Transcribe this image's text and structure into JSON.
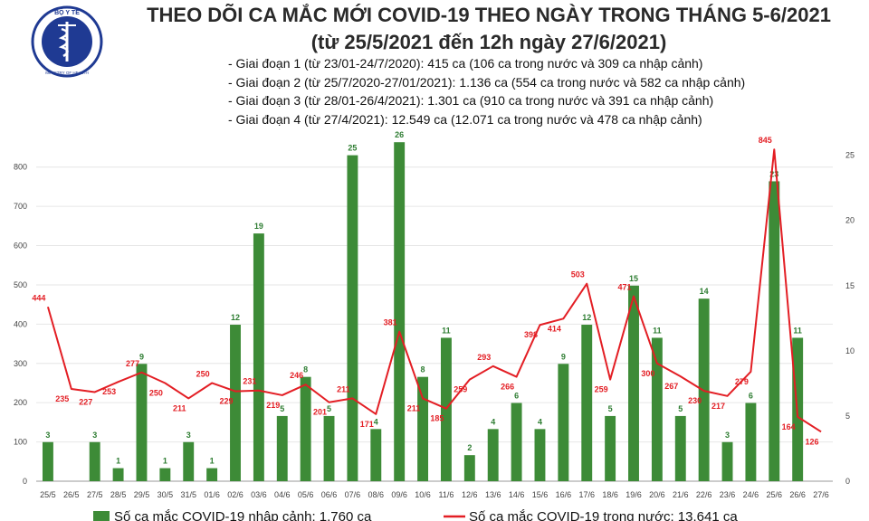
{
  "header": {
    "title_line1": "THEO DÕI CA MẮC MỚI COVID-19 THEO NGÀY TRONG THÁNG 5-6/2021",
    "title_line2": "(từ 25/5/2021 đến 12h ngày 27/6/2021)",
    "notes": [
      "- Giai đoạn 1 (từ 23/01-24/7/2020): 415 ca (106 ca trong nước và 309 ca nhập cảnh)",
      "- Giai đoạn 2 (từ 25/7/2020-27/01/2021): 1.136 ca (554 ca trong nước và 582 ca nhập cảnh)",
      "- Giai đoạn 3 (từ 28/01-26/4/2021): 1.301 ca (910 ca trong nước và 391 ca nhập cảnh)",
      "- Giai đoạn 4 (từ 27/4/2021): 12.549 ca (12.071 ca trong nước và 478 ca nhập cảnh)"
    ]
  },
  "logo": {
    "text": "BỘ Y TẾ",
    "subtext": "MINISTRY OF HEALTH",
    "color": "#1f3a93"
  },
  "colors": {
    "bar": "#3d8b37",
    "line": "#e31e24",
    "bar_label": "#2e7d32",
    "line_label": "#e31e24"
  },
  "chart_data": {
    "type": "bar+line",
    "categories": [
      "25/5",
      "26/5",
      "27/5",
      "28/5",
      "29/5",
      "30/5",
      "31/5",
      "01/6",
      "02/6",
      "03/6",
      "04/6",
      "05/6",
      "06/6",
      "07/6",
      "08/6",
      "09/6",
      "10/6",
      "11/6",
      "12/6",
      "13/6",
      "14/6",
      "15/6",
      "16/6",
      "17/6",
      "18/6",
      "19/6",
      "20/6",
      "21/6",
      "22/6",
      "23/6",
      "24/6",
      "25/6",
      "26/6",
      "27/6"
    ],
    "left_axis": {
      "ylim": [
        0,
        880
      ],
      "ticks": [
        0,
        100,
        200,
        300,
        400,
        500,
        600,
        700,
        800
      ]
    },
    "right_axis": {
      "ylim": [
        0,
        26.5
      ],
      "ticks": [
        0,
        5,
        10,
        15,
        20,
        25
      ]
    },
    "series": [
      {
        "name": "Số ca mắc COVID-19 nhập cảnh: 1.760 ca",
        "type": "bar",
        "axis": "right",
        "values": [
          3,
          null,
          3,
          1,
          9,
          1,
          3,
          1,
          12,
          19,
          5,
          8,
          5,
          25,
          4,
          26,
          8,
          11,
          2,
          4,
          6,
          4,
          9,
          12,
          5,
          15,
          11,
          5,
          14,
          3,
          6,
          23,
          11,
          null
        ]
      },
      {
        "name": "Số ca mắc COVID-19 trong nước: 13.641 ca",
        "type": "line",
        "axis": "left",
        "values": [
          444,
          235,
          227,
          253,
          277,
          250,
          211,
          250,
          229,
          231,
          219,
          246,
          201,
          211,
          171,
          381,
          211,
          185,
          259,
          293,
          266,
          398,
          414,
          503,
          259,
          471,
          300,
          267,
          230,
          217,
          279,
          845,
          164,
          126
        ]
      }
    ]
  }
}
